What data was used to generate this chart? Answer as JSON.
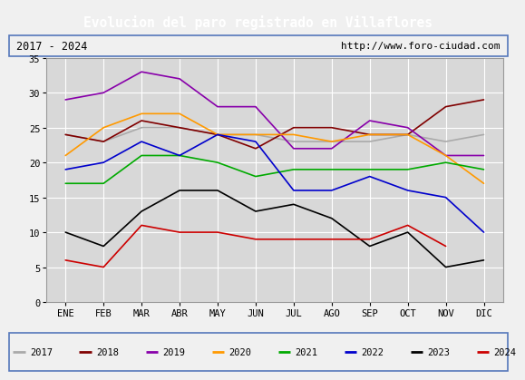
{
  "title": "Evolucion del paro registrado en Villaflores",
  "subtitle_left": "2017 - 2024",
  "subtitle_right": "http://www.foro-ciudad.com",
  "months": [
    "ENE",
    "FEB",
    "MAR",
    "ABR",
    "MAY",
    "JUN",
    "JUL",
    "AGO",
    "SEP",
    "OCT",
    "NOV",
    "DIC"
  ],
  "series": {
    "2017": {
      "values": [
        24,
        23,
        25,
        25,
        24,
        24,
        23,
        23,
        23,
        24,
        23,
        24
      ],
      "color": "#aaaaaa"
    },
    "2018": {
      "values": [
        24,
        23,
        26,
        25,
        24,
        22,
        25,
        25,
        24,
        24,
        28,
        29
      ],
      "color": "#800000"
    },
    "2019": {
      "values": [
        29,
        30,
        33,
        32,
        28,
        28,
        22,
        22,
        26,
        25,
        21,
        21
      ],
      "color": "#8800aa"
    },
    "2020": {
      "values": [
        21,
        25,
        27,
        27,
        24,
        24,
        24,
        23,
        24,
        24,
        21,
        17
      ],
      "color": "#ff9900"
    },
    "2021": {
      "values": [
        17,
        17,
        21,
        21,
        20,
        18,
        19,
        19,
        19,
        19,
        20,
        19
      ],
      "color": "#00aa00"
    },
    "2022": {
      "values": [
        19,
        20,
        23,
        21,
        24,
        23,
        16,
        16,
        18,
        16,
        15,
        10
      ],
      "color": "#0000cc"
    },
    "2023": {
      "values": [
        10,
        8,
        13,
        16,
        16,
        13,
        14,
        12,
        8,
        10,
        5,
        6
      ],
      "color": "#000000"
    },
    "2024": {
      "values": [
        6,
        5,
        11,
        10,
        10,
        9,
        9,
        9,
        9,
        11,
        8,
        null
      ],
      "color": "#cc0000"
    }
  },
  "ylim": [
    0,
    35
  ],
  "yticks": [
    0,
    5,
    10,
    15,
    20,
    25,
    30,
    35
  ],
  "plot_bg_color": "#d8d8d8",
  "title_bg_color": "#4472c4",
  "title_color": "white",
  "header_bg_color": "#f0f0f0",
  "grid_color": "#ffffff",
  "legend_order": [
    "2017",
    "2018",
    "2019",
    "2020",
    "2021",
    "2022",
    "2023",
    "2024"
  ]
}
